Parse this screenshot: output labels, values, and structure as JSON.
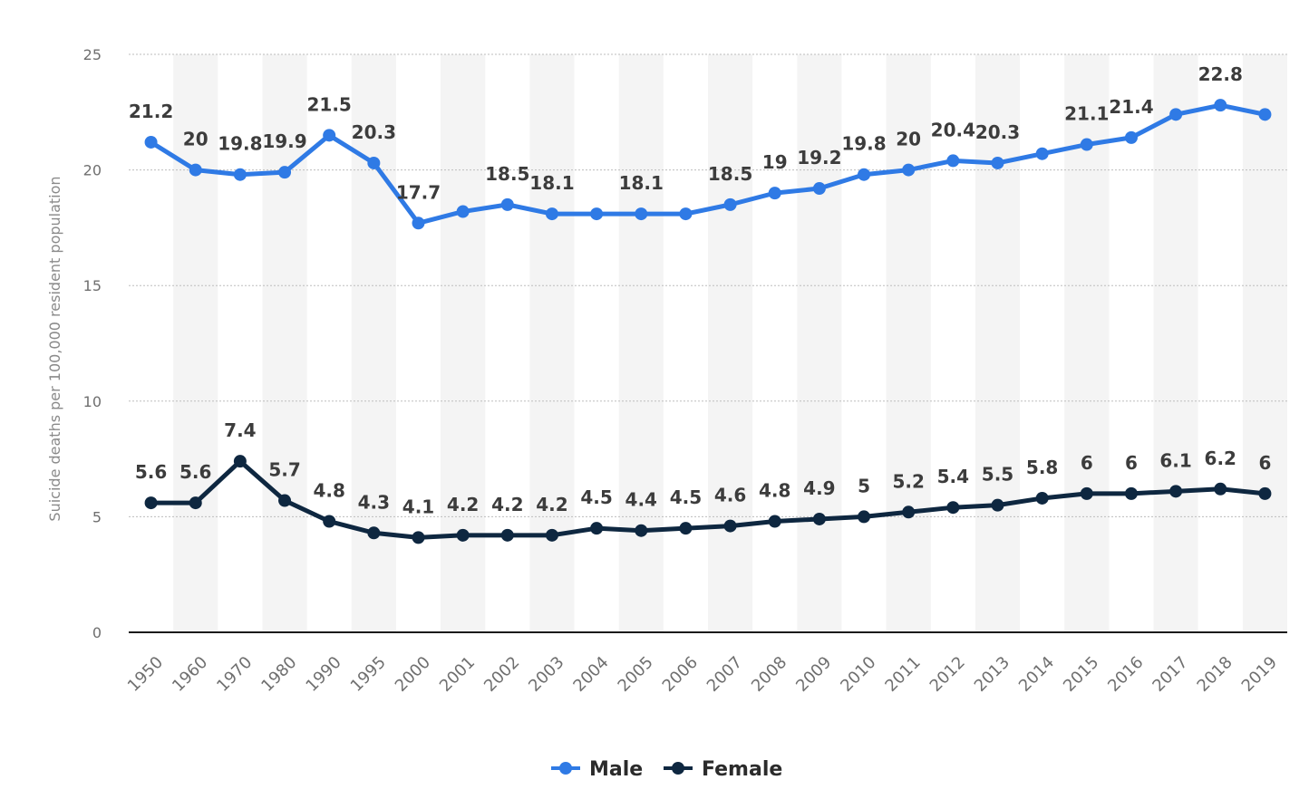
{
  "chart_data": {
    "type": "line",
    "ylabel": "Suicide deaths per 100,000 resident population",
    "ylim": [
      0,
      25
    ],
    "yticks": [
      0,
      5,
      10,
      15,
      20,
      25
    ],
    "grid": true,
    "legend": "bottom-center",
    "categories": [
      "1950",
      "1960",
      "1970",
      "1980",
      "1990",
      "1995",
      "2000",
      "2001",
      "2002",
      "2003",
      "2004",
      "2005",
      "2006",
      "2007",
      "2008",
      "2009",
      "2010",
      "2011",
      "2012",
      "2013",
      "2014",
      "2015",
      "2016",
      "2017",
      "2018",
      "2019"
    ],
    "series": [
      {
        "name": "Male",
        "color": "#2f7ae5",
        "values": [
          21.2,
          20,
          19.8,
          19.9,
          21.5,
          20.3,
          17.7,
          18.2,
          18.5,
          18.1,
          18.1,
          18.1,
          18.1,
          18.5,
          19,
          19.2,
          19.8,
          20,
          20.4,
          20.3,
          20.7,
          21.1,
          21.4,
          22.4,
          22.8,
          22.4
        ],
        "labels": [
          "21.2",
          "20",
          "19.8",
          "19.9",
          "21.5",
          "20.3",
          "17.7",
          "",
          "18.5",
          "18.1",
          "",
          "18.1",
          "",
          "18.5",
          "19",
          "19.2",
          "19.8",
          "20",
          "20.4",
          "20.3",
          "",
          "21.1",
          "21.4",
          "",
          "22.8",
          ""
        ]
      },
      {
        "name": "Female",
        "color": "#0e2740",
        "values": [
          5.6,
          5.6,
          7.4,
          5.7,
          4.8,
          4.3,
          4.1,
          4.2,
          4.2,
          4.2,
          4.5,
          4.4,
          4.5,
          4.6,
          4.8,
          4.9,
          5,
          5.2,
          5.4,
          5.5,
          5.8,
          6,
          6,
          6.1,
          6.2,
          6
        ],
        "labels": [
          "5.6",
          "5.6",
          "7.4",
          "5.7",
          "4.8",
          "4.3",
          "4.1",
          "4.2",
          "4.2",
          "4.2",
          "4.5",
          "4.4",
          "4.5",
          "4.6",
          "4.8",
          "4.9",
          "5",
          "5.2",
          "5.4",
          "5.5",
          "5.8",
          "6",
          "6",
          "6.1",
          "6.2",
          "6"
        ]
      }
    ]
  }
}
